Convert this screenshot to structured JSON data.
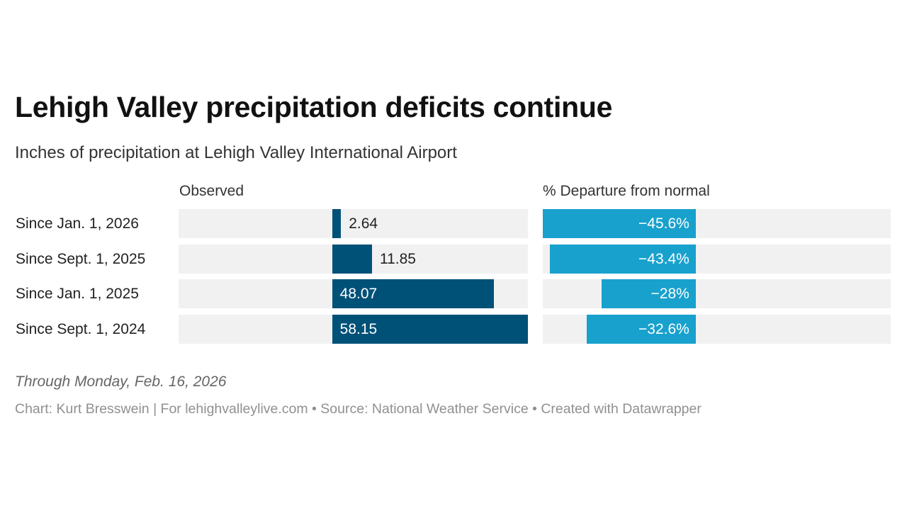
{
  "title": "Lehigh Valley precipitation deficits continue",
  "subtitle": "Inches of precipitation at Lehigh Valley International Airport",
  "note": "Through Monday, Feb. 16, 2026",
  "source": "Chart: Kurt Bresswein | For lehighvalleylive.com • Source: National Weather Service • Created with Datawrapper",
  "chart_data": {
    "type": "bar",
    "orientation": "horizontal",
    "categories": [
      "Since Jan. 1, 2026",
      "Since Sept. 1, 2025",
      "Since Jan. 1, 2025",
      "Since Sept. 1, 2024"
    ],
    "series": [
      {
        "name": "Observed",
        "values": [
          2.64,
          11.85,
          48.07,
          58.15
        ],
        "labels": [
          "2.64",
          "11.85",
          "48.07",
          "58.15"
        ],
        "color": "#005178"
      },
      {
        "name": "% Departure from normal",
        "values": [
          -45.6,
          -43.4,
          -28,
          -32.6
        ],
        "labels": [
          "−45.6%",
          "−43.4%",
          "−28%",
          "−32.6%"
        ],
        "color": "#18a1cd"
      }
    ],
    "xlim": [
      -45.6,
      58.15
    ],
    "grid": false,
    "background_color": "#f1f1f1"
  }
}
